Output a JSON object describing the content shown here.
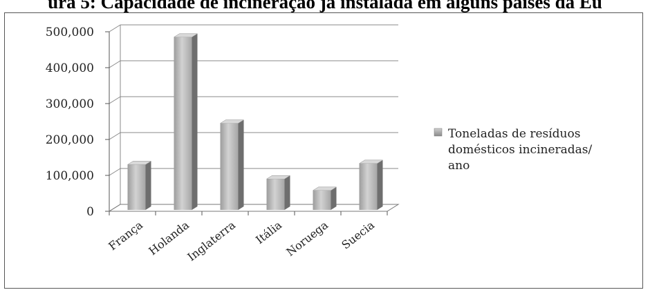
{
  "figure": {
    "title": "ura 5: Capacidade de incineração já instalada em alguns países da Eu"
  },
  "chart_data": {
    "type": "bar",
    "categories": [
      "França",
      "Holanda",
      "Inglaterra",
      "Itália",
      "Noruega",
      "Suecia"
    ],
    "series": [
      {
        "name": "Toneladas de resíduos domésticos incineradas/ ano",
        "values": [
          130000,
          485000,
          245000,
          90000,
          58000,
          133000
        ]
      }
    ],
    "yticks": [
      "0",
      "100,000",
      "200,000",
      "300,000",
      "400,000",
      "500,000"
    ],
    "ylim": [
      0,
      500000
    ],
    "legend_lines": [
      "Toneladas de resíduos",
      "domésticos  incineradas/",
      "ano"
    ],
    "legend_position": "right",
    "grid": true,
    "bar_color": "#b5b5b5"
  }
}
